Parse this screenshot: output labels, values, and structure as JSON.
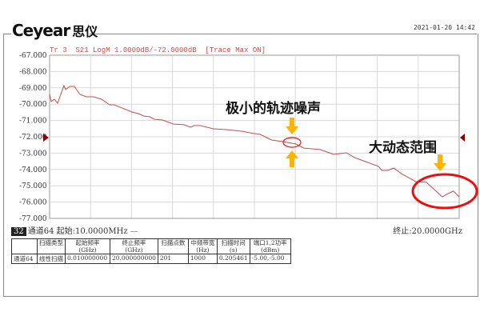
{
  "header": {
    "logo": "Ceyear",
    "logo_cn": "思仪",
    "datetime": "2021-01-20 14:42"
  },
  "trace_title": "Tr 3  S21 LogM 1.0000dB/-72.0000dB  [Trace Max ON]",
  "colors": {
    "trace": "#c0504d",
    "annotation_arrow": "#ffb400",
    "annotation_circle": "#e81010",
    "marker": "#8b0000"
  },
  "annotations": {
    "low_noise": "极小的轨迹噪声",
    "dynamic_range": "大动态范围"
  },
  "footer": {
    "channel_badge": "32",
    "start": "通道64 起始:10.0000MHz",
    "start_dash": "—",
    "stop": "终止:20.0000GHz"
  },
  "table": {
    "headers": [
      [
        "",
        ""
      ],
      [
        "扫描类型",
        ""
      ],
      [
        "起始频率",
        "(GHz)"
      ],
      [
        "终止频率",
        "(GHz)"
      ],
      [
        "扫描点数",
        ""
      ],
      [
        "中频带宽",
        "(Hz)"
      ],
      [
        "扫描时间",
        "(s)"
      ],
      [
        "端口1,2功率",
        "(dBm)"
      ]
    ],
    "row": [
      "通道64",
      "线性扫描",
      "0.010000000",
      "20.000000000",
      "201",
      "1000",
      "0.205461",
      "-5.00,-5.00"
    ]
  },
  "chart_data": {
    "type": "line",
    "title": "Tr 3  S21 LogM 1.0000dB/-72.0000dB  [Trace Max ON]",
    "xlim": [
      0.01,
      20.0
    ],
    "ylim": [
      -77,
      -67
    ],
    "reference_level": -72,
    "grid": true,
    "y_ticks": [
      "-67.000",
      "-68.000",
      "-69.000",
      "-70.000",
      "-71.000",
      "-72.000",
      "-73.000",
      "-74.000",
      "-75.000",
      "-76.000",
      "-77.000"
    ],
    "series": [
      {
        "x": [
          0.01,
          0.09,
          0.24,
          0.4,
          0.71,
          0.79,
          0.99,
          1.22,
          1.49,
          1.81,
          2.16,
          2.55,
          2.94,
          3.17,
          3.45,
          4.03,
          4.34,
          4.62,
          4.89,
          5.12,
          5.51,
          6.06,
          6.57,
          6.88,
          7.08,
          7.35,
          8.01,
          8.64,
          9.42,
          9.97,
          10.28,
          10.86,
          11.37,
          12.03,
          12.42,
          13.21,
          13.87,
          14.5,
          14.89,
          15.43,
          16.06,
          16.22,
          16.53,
          16.8,
          17.23,
          17.89,
          18.4,
          18.79,
          19.18,
          19.37,
          19.72,
          20.0
        ],
        "y": [
          -69.4,
          -69.84,
          -69.7,
          -69.94,
          -68.86,
          -69.11,
          -68.91,
          -68.91,
          -69.4,
          -69.55,
          -69.55,
          -69.7,
          -70.04,
          -70.04,
          -70.19,
          -70.48,
          -70.58,
          -70.73,
          -70.77,
          -70.92,
          -70.97,
          -71.22,
          -71.26,
          -71.41,
          -71.31,
          -71.31,
          -71.51,
          -71.56,
          -71.66,
          -71.8,
          -71.85,
          -72.2,
          -72.29,
          -72.44,
          -72.69,
          -72.78,
          -73.08,
          -72.98,
          -73.27,
          -73.52,
          -73.81,
          -74.06,
          -74.06,
          -73.91,
          -74.3,
          -74.75,
          -74.79,
          -75.24,
          -75.68,
          -75.53,
          -75.33,
          -75.68
        ]
      }
    ]
  }
}
